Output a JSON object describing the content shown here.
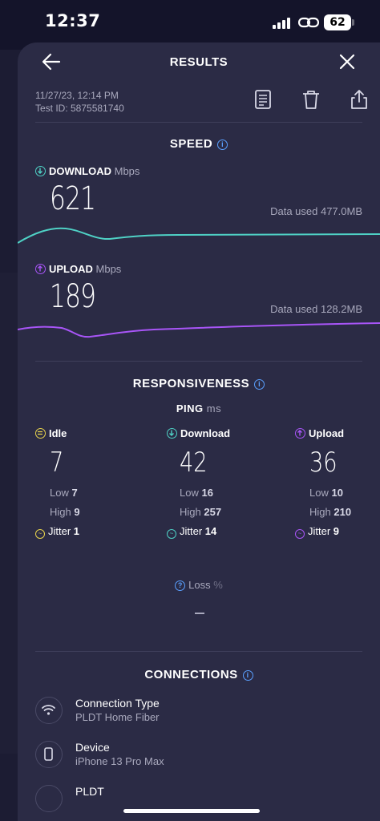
{
  "status": {
    "time": "12:37",
    "battery": "62"
  },
  "header": {
    "title": "RESULTS"
  },
  "meta": {
    "datetime": "11/27/23, 12:14 PM",
    "test_id": "Test ID: 5875581740"
  },
  "speed": {
    "title": "SPEED",
    "download": {
      "label": "DOWNLOAD",
      "unit": "Mbps",
      "value": "621",
      "data_used": "Data used 477.0MB"
    },
    "upload": {
      "label": "UPLOAD",
      "unit": "Mbps",
      "value": "189",
      "data_used": "Data used 128.2MB"
    }
  },
  "responsiveness": {
    "title": "RESPONSIVENESS",
    "ping_label": "PING",
    "ping_unit": "ms",
    "columns": [
      {
        "label": "Idle",
        "value": "7",
        "low_label": "Low",
        "low": "7",
        "high_label": "High",
        "high": "9",
        "jitter_label": "Jitter",
        "jitter": "1"
      },
      {
        "label": "Download",
        "value": "42",
        "low_label": "Low",
        "low": "16",
        "high_label": "High",
        "high": "257",
        "jitter_label": "Jitter",
        "jitter": "14"
      },
      {
        "label": "Upload",
        "value": "36",
        "low_label": "Low",
        "low": "10",
        "high_label": "High",
        "high": "210",
        "jitter_label": "Jitter",
        "jitter": "9"
      }
    ],
    "loss_label": "Loss",
    "loss_unit": "%"
  },
  "connections": {
    "title": "CONNECTIONS",
    "items": [
      {
        "title": "Connection Type",
        "value": "PLDT Home Fiber",
        "icon": "wifi-icon"
      },
      {
        "title": "Device",
        "value": "iPhone 13 Pro Max",
        "icon": "phone-icon"
      },
      {
        "title": "PLDT",
        "value": "",
        "icon": "globe-icon"
      }
    ]
  },
  "colors": {
    "download": "#4fd1c5",
    "upload": "#a855f7",
    "idle": "#e8d44d",
    "info": "#5aa0ff",
    "background": "#2b2b45"
  }
}
